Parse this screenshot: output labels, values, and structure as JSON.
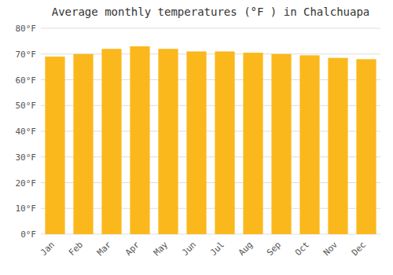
{
  "chart_data": {
    "type": "bar",
    "title": "Average monthly temperatures (°F ) in Chalchuapa",
    "categories": [
      "Jan",
      "Feb",
      "Mar",
      "Apr",
      "May",
      "Jun",
      "Jul",
      "Aug",
      "Sep",
      "Oct",
      "Nov",
      "Dec"
    ],
    "values": [
      69.0,
      70.0,
      72.0,
      73.0,
      72.0,
      71.0,
      71.0,
      70.5,
      70.0,
      69.5,
      68.5,
      68.0
    ],
    "color": "#FBB81C",
    "ylim": [
      0,
      80
    ],
    "yticks": [
      {
        "value": 0,
        "label": "0°F"
      },
      {
        "value": 10,
        "label": "10°F"
      },
      {
        "value": 20,
        "label": "20°F"
      },
      {
        "value": 30,
        "label": "30°F"
      },
      {
        "value": 40,
        "label": "40°F"
      },
      {
        "value": 50,
        "label": "50°F"
      },
      {
        "value": 60,
        "label": "60°F"
      },
      {
        "value": 70,
        "label": "70°F"
      },
      {
        "value": 80,
        "label": "80°F"
      }
    ],
    "grid": true
  }
}
